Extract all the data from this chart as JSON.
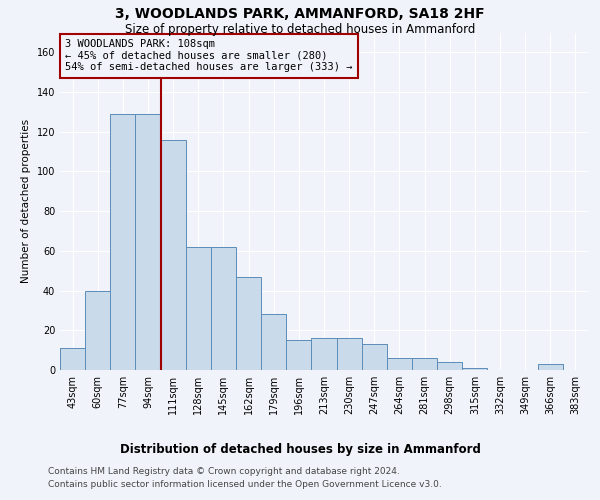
{
  "title": "3, WOODLANDS PARK, AMMANFORD, SA18 2HF",
  "subtitle": "Size of property relative to detached houses in Ammanford",
  "xlabel_bottom": "Distribution of detached houses by size in Ammanford",
  "ylabel": "Number of detached properties",
  "bar_labels": [
    "43sqm",
    "60sqm",
    "77sqm",
    "94sqm",
    "111sqm",
    "128sqm",
    "145sqm",
    "162sqm",
    "179sqm",
    "196sqm",
    "213sqm",
    "230sqm",
    "247sqm",
    "264sqm",
    "281sqm",
    "298sqm",
    "315sqm",
    "332sqm",
    "349sqm",
    "366sqm",
    "383sqm"
  ],
  "bar_values": [
    11,
    40,
    129,
    129,
    116,
    62,
    62,
    47,
    28,
    15,
    16,
    16,
    13,
    6,
    6,
    4,
    1,
    0,
    0,
    3,
    0
  ],
  "bar_color": "#c9daea",
  "bar_edge_color": "#5b8db8",
  "ylim": [
    0,
    170
  ],
  "yticks": [
    0,
    20,
    40,
    60,
    80,
    100,
    120,
    140,
    160
  ],
  "property_bin_index": 4,
  "annotation_text": "3 WOODLANDS PARK: 108sqm\n← 45% of detached houses are smaller (280)\n54% of semi-detached houses are larger (333) →",
  "vline_color": "#a00000",
  "annotation_box_edge": "#a00000",
  "footer_line1": "Contains HM Land Registry data © Crown copyright and database right 2024.",
  "footer_line2": "Contains public sector information licensed under the Open Government Licence v3.0.",
  "background_color": "#f0f4fa",
  "grid_color": "#ffffff",
  "title_fontsize": 10,
  "subtitle_fontsize": 8.5,
  "ylabel_fontsize": 7.5,
  "tick_fontsize": 7,
  "footer_fontsize": 6.5,
  "annotation_fontsize": 7.5,
  "xlabel_fontsize": 8.5
}
